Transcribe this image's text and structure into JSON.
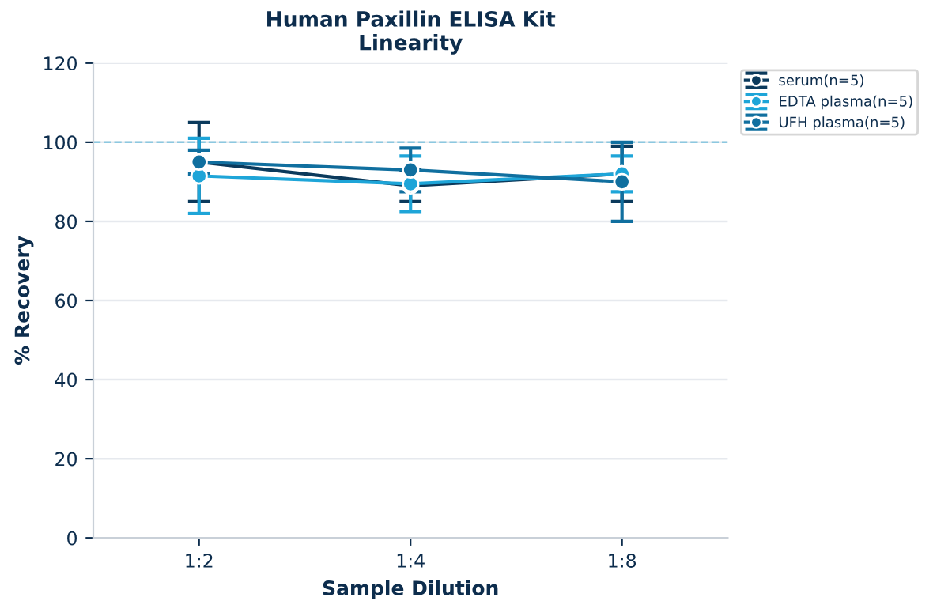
{
  "chart_data": {
    "type": "line",
    "title": "Human Paxillin ELISA Kit\nLinearity",
    "xlabel": "Sample Dilution",
    "ylabel": "% Recovery",
    "categories": [
      "1:2",
      "1:4",
      "1:8"
    ],
    "series": [
      {
        "name": "serum(n=5)",
        "color": "#0b3a5c",
        "values": [
          95,
          89,
          92
        ],
        "errors": [
          10,
          4,
          7
        ]
      },
      {
        "name": "EDTA plasma(n=5)",
        "color": "#1ea5d8",
        "values": [
          91.5,
          89.5,
          92
        ],
        "errors": [
          9.5,
          7,
          4.5
        ]
      },
      {
        "name": "UFH plasma(n=5)",
        "color": "#106f9f",
        "values": [
          95,
          93,
          90
        ],
        "errors": [
          3,
          5.5,
          10
        ]
      }
    ],
    "ylim": [
      0,
      120
    ],
    "yticks": [
      0,
      20,
      40,
      60,
      80,
      100,
      120
    ],
    "grid": "y",
    "legend": "top right",
    "marker": "circle",
    "line_style": "solid",
    "ref_lines": [
      {
        "axis": "y",
        "value": 100,
        "color": "#8cc8e0",
        "line_style": "dashed"
      }
    ]
  }
}
